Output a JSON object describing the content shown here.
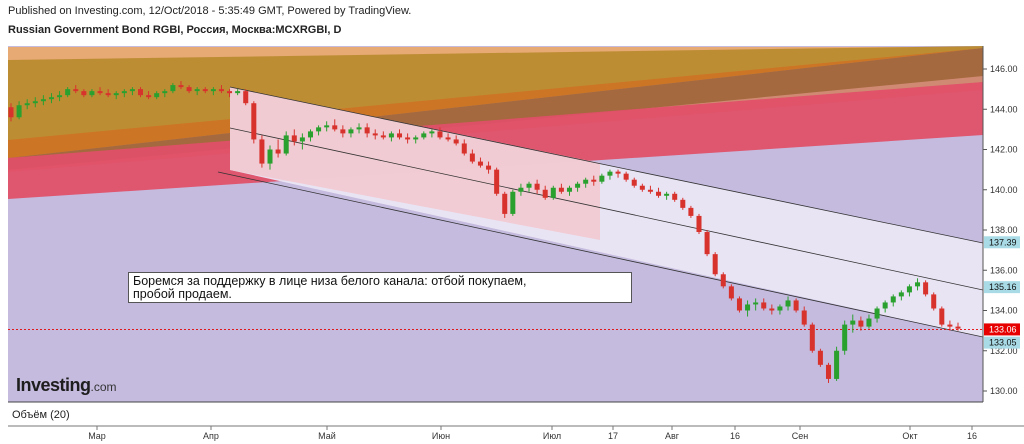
{
  "header": {
    "published": "Published on Investing.com, 12/Oct/2018 - 5:35:49 GMT, Powered by TradingView.",
    "symbol": "Russian Government Bond RGBI, Россия, Москва:MCXRGBI, D"
  },
  "annotation": {
    "line1": "Боремся за поддержку в лице низа белого канала: отбой покупаем,",
    "line2": "пробой продаем."
  },
  "watermark": {
    "brand": "Investing",
    "suffix": ".com"
  },
  "volume_label": "Объём (20)",
  "colors": {
    "background_fill": "#c5bbdf",
    "orange_fill": "#e9a96e",
    "olive_fill": "#b88a2e",
    "dark_gray_fill": "#5f6d63",
    "red_fill": "#e05068",
    "white_channel": "#ebe6f4",
    "pink_channel": "#f3c6cc",
    "up_candle": "#2aa12f",
    "down_candle": "#d8322d",
    "last_price_tag": "#e60000",
    "level_tag": "#a9dbe6"
  },
  "chart_data": {
    "type": "candlestick",
    "y_axis": {
      "range": [
        129.0,
        147.0
      ],
      "ticks": [
        "146.00",
        "144.00",
        "142.00",
        "140.00",
        "138.00",
        "136.00",
        "134.00",
        "132.00",
        "130.00"
      ]
    },
    "x_axis": {
      "labels": [
        "Мар",
        "Апр",
        "Май",
        "Июн",
        "Июл",
        "17",
        "Авг",
        "16",
        "Сен",
        "Окт",
        "16"
      ]
    },
    "price_tags": [
      {
        "label": "137.39",
        "value": 137.39,
        "kind": "level"
      },
      {
        "label": "135.16",
        "value": 135.16,
        "kind": "level"
      },
      {
        "label": "133.06",
        "value": 133.06,
        "kind": "last"
      },
      {
        "label": "133.05",
        "value": 133.05,
        "kind": "level"
      }
    ],
    "candles": [
      [
        144.1,
        144.3,
        143.4,
        143.6
      ],
      [
        143.6,
        144.4,
        143.5,
        144.2
      ],
      [
        144.2,
        144.5,
        144.0,
        144.3
      ],
      [
        144.3,
        144.6,
        144.1,
        144.4
      ],
      [
        144.4,
        144.7,
        144.2,
        144.5
      ],
      [
        144.5,
        144.8,
        144.3,
        144.6
      ],
      [
        144.6,
        144.9,
        144.4,
        144.7
      ],
      [
        144.7,
        145.1,
        144.6,
        145.0
      ],
      [
        145.0,
        145.2,
        144.8,
        144.9
      ],
      [
        144.9,
        145.0,
        144.6,
        144.7
      ],
      [
        144.7,
        145.0,
        144.6,
        144.9
      ],
      [
        144.9,
        145.1,
        144.7,
        144.8
      ],
      [
        144.8,
        145.0,
        144.6,
        144.7
      ],
      [
        144.7,
        144.9,
        144.5,
        144.8
      ],
      [
        144.8,
        145.0,
        144.6,
        144.9
      ],
      [
        144.9,
        145.1,
        144.7,
        145.0
      ],
      [
        145.0,
        145.1,
        144.6,
        144.7
      ],
      [
        144.7,
        144.9,
        144.5,
        144.6
      ],
      [
        144.6,
        144.9,
        144.5,
        144.8
      ],
      [
        144.8,
        145.0,
        144.6,
        144.9
      ],
      [
        144.9,
        145.3,
        144.8,
        145.2
      ],
      [
        145.2,
        145.4,
        145.0,
        145.1
      ],
      [
        145.1,
        145.2,
        144.8,
        144.9
      ],
      [
        144.9,
        145.1,
        144.7,
        145.0
      ],
      [
        145.0,
        145.1,
        144.8,
        144.9
      ],
      [
        144.9,
        145.1,
        144.7,
        145.0
      ],
      [
        145.0,
        145.2,
        144.8,
        144.9
      ],
      [
        144.9,
        145.0,
        144.6,
        144.8
      ],
      [
        144.8,
        145.0,
        144.7,
        144.9
      ],
      [
        144.9,
        145.0,
        144.2,
        144.3
      ],
      [
        144.3,
        144.4,
        142.3,
        142.5
      ],
      [
        142.5,
        142.7,
        141.1,
        141.3
      ],
      [
        141.3,
        142.2,
        141.0,
        142.0
      ],
      [
        142.0,
        142.5,
        141.6,
        141.8
      ],
      [
        141.8,
        142.9,
        141.7,
        142.7
      ],
      [
        142.7,
        143.0,
        142.2,
        142.4
      ],
      [
        142.4,
        142.8,
        142.0,
        142.6
      ],
      [
        142.6,
        143.0,
        142.4,
        142.9
      ],
      [
        142.9,
        143.2,
        142.7,
        143.1
      ],
      [
        143.1,
        143.4,
        142.9,
        143.2
      ],
      [
        143.2,
        143.5,
        142.9,
        143.0
      ],
      [
        143.0,
        143.2,
        142.6,
        142.8
      ],
      [
        142.8,
        143.1,
        142.6,
        143.0
      ],
      [
        143.0,
        143.3,
        142.8,
        143.1
      ],
      [
        143.1,
        143.3,
        142.6,
        142.8
      ],
      [
        142.8,
        143.0,
        142.5,
        142.7
      ],
      [
        142.7,
        142.9,
        142.5,
        142.6
      ],
      [
        142.6,
        142.9,
        142.4,
        142.8
      ],
      [
        142.8,
        143.0,
        142.5,
        142.6
      ],
      [
        142.6,
        142.8,
        142.3,
        142.5
      ],
      [
        142.5,
        142.7,
        142.3,
        142.6
      ],
      [
        142.6,
        142.9,
        142.5,
        142.8
      ],
      [
        142.8,
        143.0,
        142.6,
        142.9
      ],
      [
        142.9,
        143.1,
        142.5,
        142.6
      ],
      [
        142.6,
        142.8,
        142.4,
        142.5
      ],
      [
        142.5,
        142.7,
        142.2,
        142.3
      ],
      [
        142.3,
        142.5,
        141.7,
        141.8
      ],
      [
        141.8,
        142.0,
        141.3,
        141.4
      ],
      [
        141.4,
        141.6,
        141.1,
        141.2
      ],
      [
        141.2,
        141.4,
        140.8,
        141.0
      ],
      [
        141.0,
        141.1,
        139.7,
        139.8
      ],
      [
        139.8,
        139.9,
        138.6,
        138.8
      ],
      [
        138.8,
        140.0,
        138.7,
        139.9
      ],
      [
        139.9,
        140.3,
        139.7,
        140.1
      ],
      [
        140.1,
        140.4,
        139.9,
        140.3
      ],
      [
        140.3,
        140.5,
        139.8,
        140.0
      ],
      [
        140.0,
        140.2,
        139.5,
        139.6
      ],
      [
        139.6,
        140.2,
        139.5,
        140.1
      ],
      [
        140.1,
        140.3,
        139.8,
        139.9
      ],
      [
        139.9,
        140.2,
        139.7,
        140.1
      ],
      [
        140.1,
        140.4,
        139.9,
        140.3
      ],
      [
        140.3,
        140.6,
        140.1,
        140.5
      ],
      [
        140.5,
        140.7,
        140.2,
        140.4
      ],
      [
        140.4,
        140.8,
        140.3,
        140.7
      ],
      [
        140.7,
        141.0,
        140.5,
        140.9
      ],
      [
        140.9,
        141.0,
        140.6,
        140.8
      ],
      [
        140.8,
        140.9,
        140.4,
        140.5
      ],
      [
        140.5,
        140.6,
        140.1,
        140.2
      ],
      [
        140.2,
        140.3,
        139.9,
        140.0
      ],
      [
        140.0,
        140.2,
        139.8,
        139.9
      ],
      [
        139.9,
        140.1,
        139.6,
        139.7
      ],
      [
        139.7,
        139.9,
        139.5,
        139.8
      ],
      [
        139.8,
        139.9,
        139.4,
        139.5
      ],
      [
        139.5,
        139.6,
        139.0,
        139.1
      ],
      [
        139.1,
        139.2,
        138.6,
        138.7
      ],
      [
        138.7,
        138.8,
        137.8,
        137.9
      ],
      [
        137.9,
        138.0,
        136.7,
        136.8
      ],
      [
        136.8,
        136.9,
        135.7,
        135.8
      ],
      [
        135.8,
        135.9,
        135.1,
        135.2
      ],
      [
        135.2,
        135.3,
        134.5,
        134.6
      ],
      [
        134.6,
        134.7,
        133.9,
        134.0
      ],
      [
        134.0,
        134.5,
        133.7,
        134.3
      ],
      [
        134.3,
        134.6,
        134.0,
        134.4
      ],
      [
        134.4,
        134.6,
        134.0,
        134.1
      ],
      [
        134.1,
        134.3,
        133.8,
        134.0
      ],
      [
        134.0,
        134.3,
        133.8,
        134.2
      ],
      [
        134.2,
        134.7,
        134.0,
        134.5
      ],
      [
        134.5,
        134.6,
        133.9,
        134.0
      ],
      [
        134.0,
        134.2,
        133.2,
        133.3
      ],
      [
        133.3,
        133.4,
        131.9,
        132.0
      ],
      [
        132.0,
        132.1,
        131.2,
        131.3
      ],
      [
        131.3,
        131.4,
        130.4,
        130.6
      ],
      [
        130.6,
        132.2,
        130.5,
        132.0
      ],
      [
        132.0,
        133.5,
        131.8,
        133.3
      ],
      [
        133.3,
        133.8,
        132.9,
        133.5
      ],
      [
        133.5,
        133.7,
        133.0,
        133.2
      ],
      [
        133.2,
        133.8,
        133.1,
        133.6
      ],
      [
        133.6,
        134.2,
        133.4,
        134.1
      ],
      [
        134.1,
        134.5,
        133.9,
        134.4
      ],
      [
        134.4,
        134.8,
        134.2,
        134.7
      ],
      [
        134.7,
        135.0,
        134.5,
        134.9
      ],
      [
        134.9,
        135.3,
        134.7,
        135.2
      ],
      [
        135.2,
        135.6,
        135.0,
        135.4
      ],
      [
        135.4,
        135.5,
        134.7,
        134.8
      ],
      [
        134.8,
        134.9,
        134.0,
        134.1
      ],
      [
        134.1,
        134.2,
        133.2,
        133.3
      ],
      [
        133.3,
        133.5,
        133.0,
        133.2
      ],
      [
        133.2,
        133.4,
        133.0,
        133.1
      ]
    ]
  }
}
